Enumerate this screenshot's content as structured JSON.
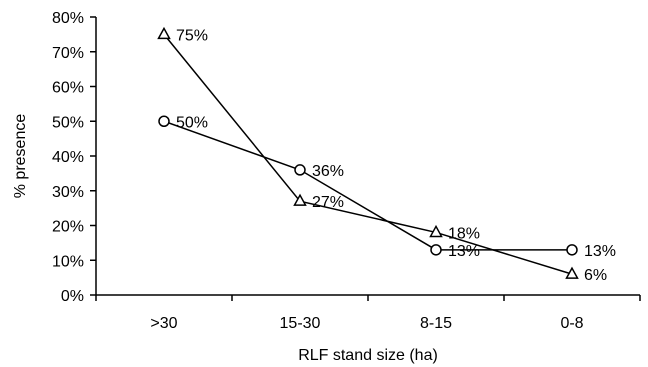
{
  "chart_data": {
    "type": "line",
    "categories": [
      ">30",
      "15-30",
      "8-15",
      "0-8"
    ],
    "xlabel": "RLF stand size (ha)",
    "ylabel": "% presence",
    "ylim": [
      0,
      80
    ],
    "y_ticks": [
      "0%",
      "10%",
      "20%",
      "30%",
      "40%",
      "50%",
      "60%",
      "70%",
      "80%"
    ],
    "grid": false,
    "series": [
      {
        "marker": "triangle",
        "values": [
          75,
          27,
          18,
          6
        ],
        "labels": [
          "75%",
          "27%",
          "18%",
          "6%"
        ]
      },
      {
        "marker": "circle",
        "values": [
          50,
          36,
          13,
          13
        ],
        "labels": [
          "50%",
          "36%",
          "13%",
          "13%"
        ]
      }
    ]
  }
}
